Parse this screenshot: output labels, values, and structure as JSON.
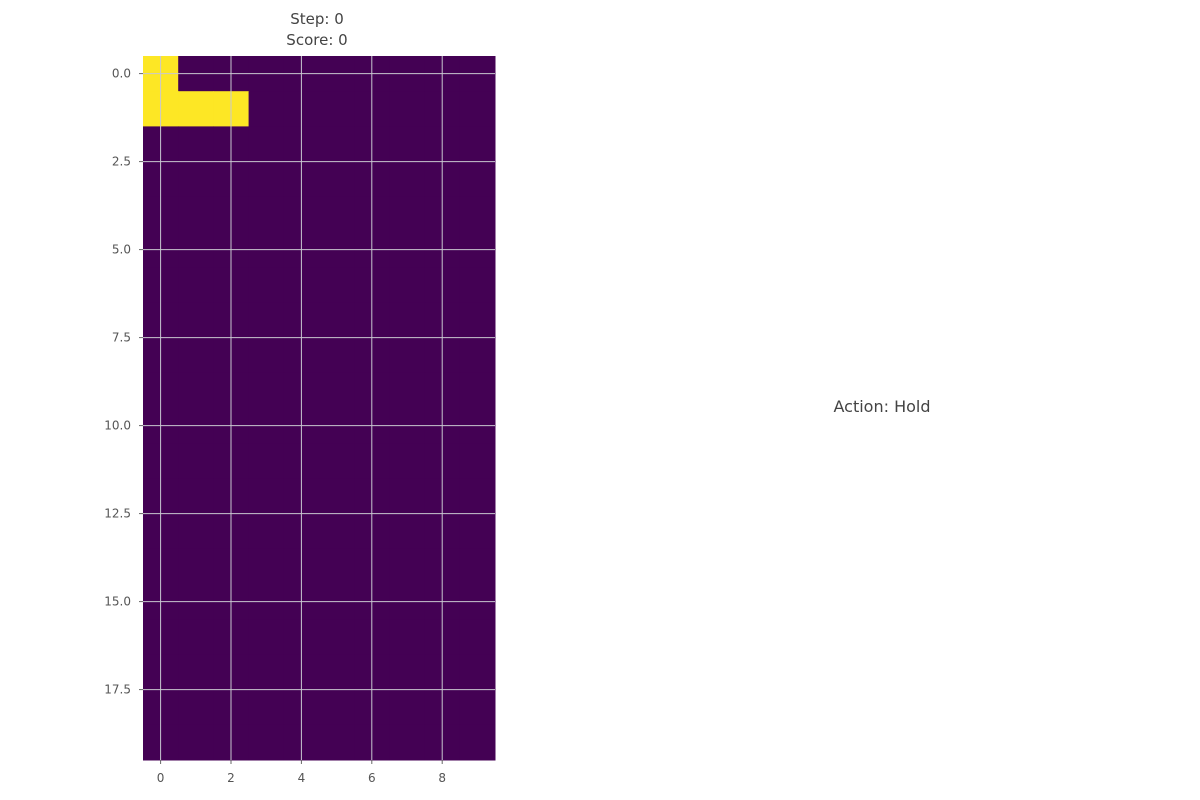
{
  "header": {
    "step_label": "Step: 0",
    "score_label": "Score: 0"
  },
  "action": {
    "label": "Action: Hold"
  },
  "colors": {
    "empty_cell": "#440154",
    "filled_cell": "#fde725",
    "grid_line": "#c8c8d0"
  },
  "board": {
    "rows": 20,
    "cols": 10,
    "filled_cells": [
      [
        0,
        0
      ],
      [
        1,
        0
      ],
      [
        1,
        1
      ],
      [
        1,
        2
      ]
    ]
  },
  "chart_data": {
    "type": "heatmap",
    "xlim": [
      -0.5,
      9.5
    ],
    "ylim": [
      19.5,
      -0.5
    ],
    "x_ticks": [
      "0",
      "2",
      "4",
      "6",
      "8"
    ],
    "y_ticks": [
      "0.0",
      "2.5",
      "5.0",
      "7.5",
      "10.0",
      "12.5",
      "15.0",
      "17.5"
    ],
    "grid": true
  }
}
